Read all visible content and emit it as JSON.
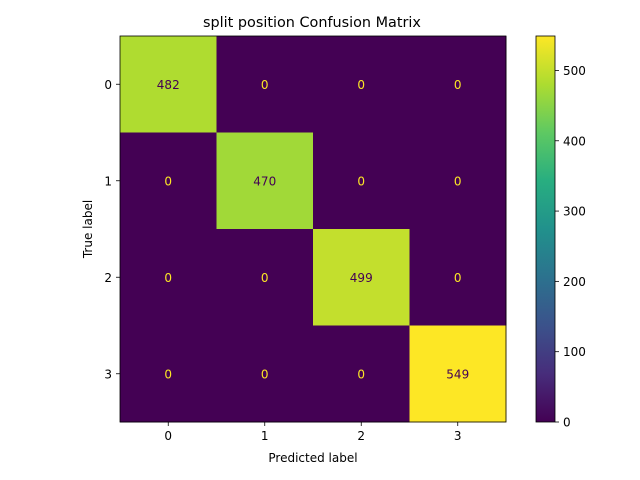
{
  "chart_data": {
    "type": "heatmap",
    "title": "split position Confusion Matrix",
    "xlabel": "Predicted label",
    "ylabel": "True label",
    "x_categories": [
      "0",
      "1",
      "2",
      "3"
    ],
    "y_categories": [
      "0",
      "1",
      "2",
      "3"
    ],
    "matrix": [
      [
        482,
        0,
        0,
        0
      ],
      [
        0,
        470,
        0,
        0
      ],
      [
        0,
        0,
        499,
        0
      ],
      [
        0,
        0,
        0,
        549
      ]
    ],
    "colormap": "viridis",
    "colorbar": {
      "range": [
        0,
        549
      ],
      "ticks": [
        0,
        100,
        200,
        300,
        400,
        500
      ]
    },
    "grid": false
  }
}
